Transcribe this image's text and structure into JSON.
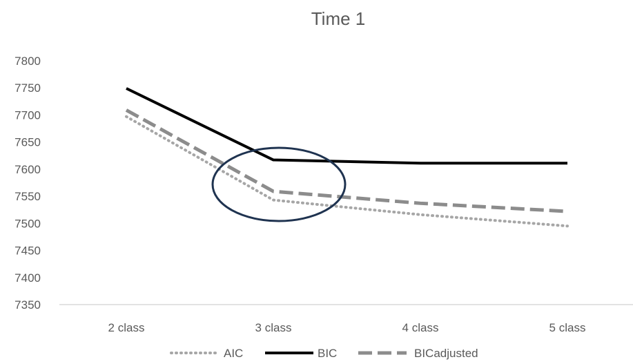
{
  "chart_data": {
    "type": "line",
    "title": "Time 1",
    "xlabel": "",
    "ylabel": "",
    "categories": [
      "2 class",
      "3 class",
      "4 class",
      "5 class"
    ],
    "ylim": [
      7350,
      7800
    ],
    "yticks": [
      "7800",
      "7750",
      "7700",
      "7650",
      "7600",
      "7550",
      "7500",
      "7450",
      "7400",
      "7350"
    ],
    "grid": false,
    "legend": "bottom",
    "series": [
      {
        "name": "AIC",
        "values": [
          7697,
          7543,
          7516,
          7495
        ],
        "color": "#a6a6a6",
        "style": "dotted"
      },
      {
        "name": "BIC",
        "values": [
          7749,
          7617,
          7611,
          7611
        ],
        "color": "#000000",
        "style": "solid"
      },
      {
        "name": "BICadjusted",
        "values": [
          7709,
          7559,
          7537,
          7522
        ],
        "color": "#8c8c8c",
        "style": "dashed"
      }
    ],
    "annotation": {
      "shape": "ellipse",
      "around": "3 class",
      "color": "#1f3350"
    }
  }
}
